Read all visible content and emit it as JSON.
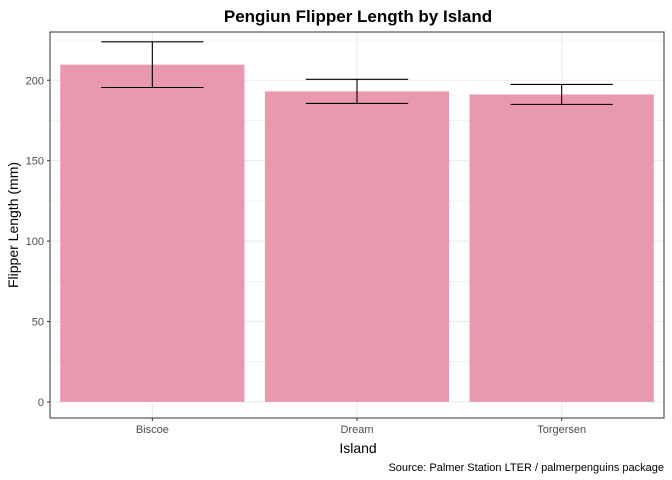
{
  "chart_data": {
    "type": "bar",
    "title": "Pengiun Flipper Length by Island",
    "xlabel": "Island",
    "ylabel": "Flipper Length (mm)",
    "caption": "Source: Palmer Station LTER / palmerpenguins package",
    "categories": [
      "Biscoe",
      "Dream",
      "Torgersen"
    ],
    "values": [
      209.7,
      193.1,
      191.2
    ],
    "error_bars": [
      {
        "lower": 195.5,
        "upper": 223.9
      },
      {
        "lower": 185.6,
        "upper": 200.6
      },
      {
        "lower": 185.0,
        "upper": 197.4
      }
    ],
    "ylim": [
      -10,
      230
    ],
    "yticks": [
      0,
      50,
      100,
      150,
      200
    ],
    "grid": true,
    "bar_color": "#e899ad",
    "error_color": "#000000",
    "panel_border_color": "#333333",
    "grid_color": "#ebebeb"
  }
}
